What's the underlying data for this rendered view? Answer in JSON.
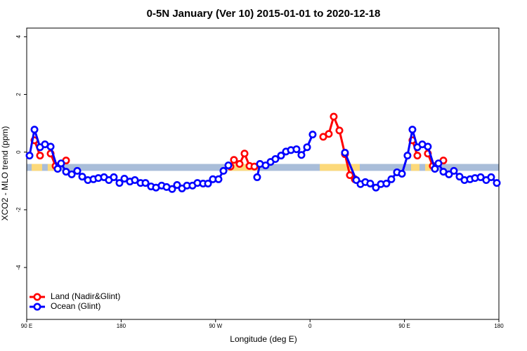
{
  "chart_data": {
    "type": "line",
    "title": "0-5N January (Ver 10)   2015-01-01 to 2020-12-18",
    "xlabel": "Longitude (deg E)",
    "ylabel": "XCO2 - MLO trend (ppm)",
    "xlim": [
      90,
      540
    ],
    "ylim": [
      -5.8,
      4.3
    ],
    "xticks": [
      {
        "value": 90,
        "label": "90 E"
      },
      {
        "value": 180,
        "label": "180"
      },
      {
        "value": 270,
        "label": "90 W"
      },
      {
        "value": 360,
        "label": "0"
      },
      {
        "value": 450,
        "label": "90 E"
      },
      {
        "value": 540,
        "label": "180"
      }
    ],
    "yticks": [
      -4,
      -2,
      0,
      2,
      4
    ],
    "legend": "bottom-left",
    "band": {
      "ylim": [
        -0.65,
        -0.41
      ],
      "color": "#a9bdd9",
      "land_color": "#fcd97a",
      "land": [
        [
          94.7,
          104.7
        ],
        [
          110,
          118
        ],
        [
          282.2,
          311
        ],
        [
          369.3,
          407.4
        ],
        [
          456.3,
          464.3
        ],
        [
          469.7,
          477.7
        ]
      ]
    },
    "series": [
      {
        "name": "Land (Nadir&Glint)",
        "color": "#ff0000",
        "x": [
          97.4,
          102.7,
          107.5,
          112.8,
          117.5,
          122.8,
          127.5,
          200,
          284.2,
          287.5,
          292.9,
          297.6,
          302.3,
          307.0,
          340,
          372.6,
          377.9,
          382.6,
          388.0,
          393.3,
          398.0,
          402.7,
          430,
          457.6,
          462.3,
          467,
          472.3,
          477.0,
          482,
          487.1
        ],
        "values": [
          0.41,
          -0.12,
          null,
          -0.05,
          -0.48,
          null,
          -0.29,
          null,
          -0.5,
          -0.27,
          -0.41,
          -0.05,
          -0.48,
          -0.5,
          null,
          0.53,
          0.63,
          1.23,
          0.75,
          -0.07,
          -0.8,
          -0.94,
          null,
          0.41,
          -0.12,
          null,
          -0.05,
          -0.48,
          null,
          -0.29
        ]
      },
      {
        "name": "Ocean (Glint)",
        "color": "#0000ff",
        "x": [
          92.7,
          97.4,
          102.7,
          107.4,
          112.8,
          119.5,
          122.8,
          127.5,
          132.9,
          138.2,
          142.9,
          148.3,
          153.6,
          158.3,
          163.7,
          168.3,
          173.0,
          178.4,
          183.1,
          188.4,
          193.1,
          198.5,
          203.2,
          208.5,
          213.2,
          218.6,
          223.3,
          228.6,
          233.3,
          238.0,
          242.7,
          248.0,
          252.7,
          258.1,
          262.8,
          267.4,
          272.8,
          277.5,
          282.2,
          295,
          309.6,
          312.3,
          317.7,
          322.4,
          327.0,
          332.4,
          337.1,
          341.8,
          347.1,
          351.8,
          357.2,
          362.5,
          380,
          393.3,
          404.1,
          408.1,
          412.7,
          417.4,
          422.8,
          427.5,
          432.8,
          437.5,
          442.9,
          447.6,
          452.9,
          457.6,
          462.3,
          467.0,
          472.3,
          479.0,
          482.4,
          487.1,
          492.4,
          497.1,
          502.5,
          507.2,
          512.5,
          517.2,
          522.6,
          527.9,
          532.6,
          538.0
        ],
        "values": [
          -0.12,
          0.78,
          0.17,
          0.27,
          0.19,
          -0.58,
          -0.39,
          -0.68,
          -0.77,
          -0.65,
          -0.85,
          -0.97,
          -0.94,
          -0.9,
          -0.87,
          -0.97,
          -0.87,
          -1.07,
          -0.92,
          -1.02,
          -0.97,
          -1.07,
          -1.07,
          -1.19,
          -1.23,
          -1.16,
          -1.21,
          -1.28,
          -1.14,
          -1.26,
          -1.16,
          -1.16,
          -1.07,
          -1.09,
          -1.09,
          -0.94,
          -0.94,
          -0.65,
          -0.46,
          null,
          -0.87,
          -0.41,
          -0.46,
          -0.34,
          -0.24,
          -0.12,
          0.02,
          0.07,
          0.1,
          -0.1,
          0.17,
          0.61,
          null,
          -0.02,
          -0.97,
          -1.11,
          -1.04,
          -1.09,
          -1.23,
          -1.11,
          -1.09,
          -0.94,
          -0.7,
          -0.75,
          -0.12,
          0.78,
          0.17,
          0.27,
          0.19,
          -0.58,
          -0.39,
          -0.68,
          -0.77,
          -0.65,
          -0.85,
          -0.97,
          -0.94,
          -0.9,
          -0.87,
          -0.97,
          -0.87,
          -1.07
        ]
      }
    ]
  }
}
